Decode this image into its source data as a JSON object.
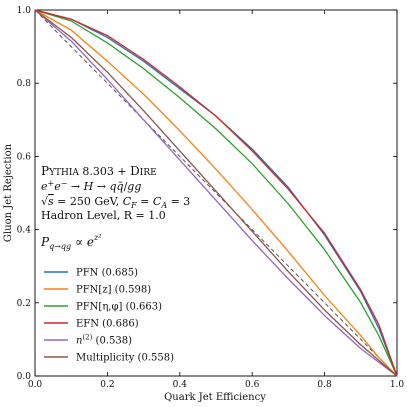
{
  "chart_data": {
    "type": "line",
    "xlabel": "Quark Jet Efficiency",
    "ylabel": "Gluon Jet Rejection",
    "xlim": [
      0.0,
      1.0
    ],
    "ylim": [
      0.0,
      1.0
    ],
    "x_ticks": [
      "0.0",
      "0.2",
      "0.4",
      "0.6",
      "0.8",
      "1.0"
    ],
    "y_ticks": [
      "0.0",
      "0.2",
      "0.4",
      "0.6",
      "0.8",
      "1.0"
    ],
    "grid": false,
    "legend_position": "lower-left",
    "annotations": {
      "generator": "Pythia 8.303 + Dire",
      "process": "e⁺e⁻ → H → qq̄/gg",
      "energy": "√s = 250 GeV, C_F = C_A = 3",
      "level": "Hadron Level, R = 1.0",
      "prob": "P_{q→qg} ∝ e^{z²}"
    },
    "reference_line": {
      "style": "dashed",
      "color": "#555555",
      "x": [
        0.0,
        1.0
      ],
      "y": [
        1.0,
        0.0
      ]
    },
    "series": [
      {
        "name": "PFN (0.685)",
        "color": "#1f77b4",
        "x": [
          0.0,
          0.1,
          0.2,
          0.3,
          0.4,
          0.5,
          0.6,
          0.7,
          0.8,
          0.9,
          0.95,
          1.0
        ],
        "y": [
          1.0,
          0.975,
          0.925,
          0.86,
          0.785,
          0.71,
          0.62,
          0.515,
          0.385,
          0.23,
          0.13,
          0.0
        ]
      },
      {
        "name": "PFN[z] (0.598)",
        "color": "#ff7f0e",
        "x": [
          0.0,
          0.1,
          0.2,
          0.3,
          0.4,
          0.5,
          0.6,
          0.7,
          0.8,
          0.9,
          0.95,
          1.0
        ],
        "y": [
          1.0,
          0.945,
          0.86,
          0.77,
          0.67,
          0.565,
          0.455,
          0.34,
          0.22,
          0.11,
          0.05,
          0.0
        ]
      },
      {
        "name": "PFN[η,φ] (0.663)",
        "color": "#2ca02c",
        "x": [
          0.0,
          0.1,
          0.2,
          0.3,
          0.4,
          0.5,
          0.6,
          0.7,
          0.8,
          0.9,
          0.95,
          1.0
        ],
        "y": [
          1.0,
          0.97,
          0.91,
          0.84,
          0.76,
          0.675,
          0.58,
          0.47,
          0.345,
          0.2,
          0.11,
          0.0
        ]
      },
      {
        "name": "EFN (0.686)",
        "color": "#d62728",
        "x": [
          0.0,
          0.1,
          0.2,
          0.3,
          0.4,
          0.5,
          0.6,
          0.7,
          0.8,
          0.9,
          0.95,
          1.0
        ],
        "y": [
          1.0,
          0.975,
          0.93,
          0.865,
          0.79,
          0.71,
          0.615,
          0.51,
          0.39,
          0.235,
          0.14,
          0.0
        ]
      },
      {
        "name": "n^(2) (0.538)",
        "color": "#9467bd",
        "x": [
          0.0,
          0.1,
          0.2,
          0.3,
          0.4,
          0.5,
          0.6,
          0.7,
          0.8,
          0.9,
          1.0
        ],
        "y": [
          1.0,
          0.915,
          0.81,
          0.7,
          0.59,
          0.48,
          0.37,
          0.265,
          0.165,
          0.075,
          0.0
        ]
      },
      {
        "name": "Multiplicity (0.558)",
        "color": "#8c564b",
        "x": [
          0.0,
          0.1,
          0.2,
          0.3,
          0.4,
          0.5,
          0.6,
          0.7,
          0.8,
          0.9,
          1.0
        ],
        "y": [
          1.0,
          0.925,
          0.83,
          0.725,
          0.615,
          0.505,
          0.395,
          0.285,
          0.18,
          0.085,
          0.0
        ]
      }
    ]
  }
}
